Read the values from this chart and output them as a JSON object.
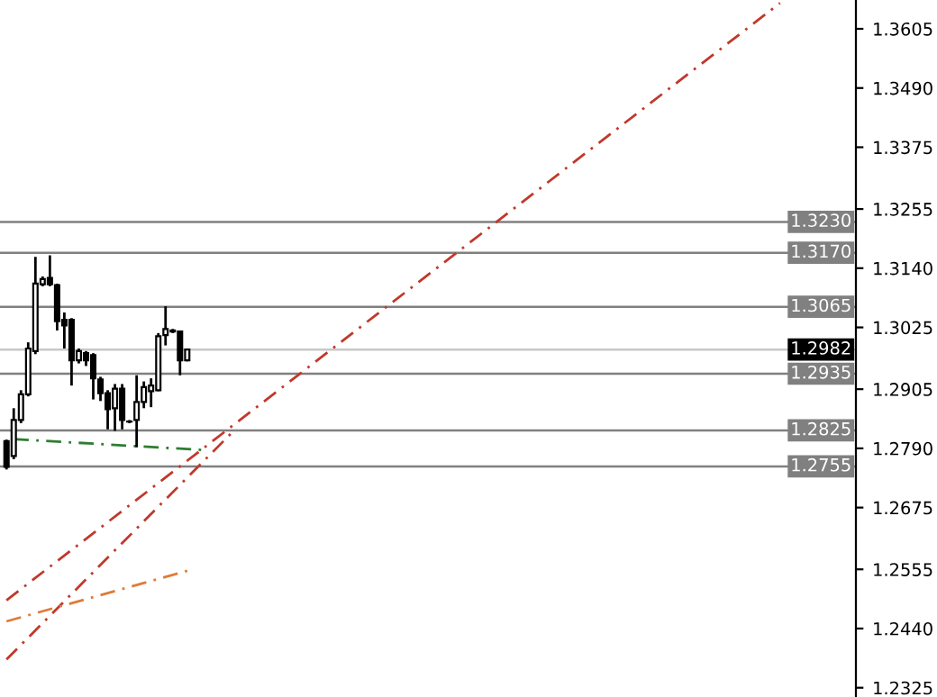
{
  "chart_data": {
    "type": "candlestick",
    "categories": [
      null,
      null,
      null,
      null,
      null,
      null,
      null,
      null,
      null,
      null,
      null,
      null,
      null,
      null,
      null,
      null,
      null,
      null,
      null,
      null,
      null,
      null,
      null,
      null,
      null,
      null,
      null,
      null,
      null,
      null,
      null,
      null,
      null,
      null,
      null,
      null,
      null,
      null,
      null,
      null,
      null,
      null,
      null,
      null,
      null,
      null,
      null,
      null,
      null,
      null,
      null,
      null,
      null,
      null,
      null,
      null,
      null,
      null,
      null,
      null,
      null,
      null,
      null,
      null,
      null,
      null,
      null,
      null,
      null,
      null,
      null,
      null,
      null,
      null,
      null,
      null,
      null,
      null,
      null,
      null,
      null,
      null,
      null,
      null,
      null,
      null,
      null,
      null,
      null,
      null,
      null,
      null,
      null,
      null,
      null,
      null,
      null,
      null,
      null,
      null,
      null,
      null,
      null,
      null,
      null,
      null,
      null,
      null,
      null,
      null,
      null,
      null,
      null,
      null,
      null,
      null,
      null,
      null
    ],
    "ohlc": [
      [
        1.2804,
        1.2807,
        1.2749,
        1.2754
      ],
      [
        1.2775,
        1.2868,
        1.2769,
        1.2845
      ],
      [
        1.2845,
        1.2903,
        1.2839,
        1.2895
      ],
      [
        1.2895,
        1.2996,
        1.2891,
        1.2984
      ],
      [
        1.2979,
        1.3162,
        1.2973,
        1.311
      ],
      [
        1.3109,
        1.3124,
        1.3105,
        1.3119
      ],
      [
        1.3121,
        1.3165,
        1.3105,
        1.3109
      ],
      [
        1.3107,
        1.311,
        1.3019,
        1.3037
      ],
      [
        1.304,
        1.3054,
        1.2984,
        1.3029
      ],
      [
        1.304,
        1.3043,
        1.2912,
        1.2961
      ],
      [
        1.2961,
        1.2984,
        1.2955,
        1.2979
      ],
      [
        1.2975,
        1.2979,
        1.295,
        1.2961
      ],
      [
        1.2971,
        1.2975,
        1.2885,
        1.2926
      ],
      [
        1.2924,
        1.2929,
        1.2882,
        1.2897
      ],
      [
        1.2897,
        1.2903,
        1.2827,
        1.2866
      ],
      [
        1.2868,
        1.2915,
        1.2824,
        1.2906
      ],
      [
        1.2906,
        1.2915,
        1.2827,
        1.2845
      ],
      [
        1.2842,
        1.2845,
        1.2839,
        1.2842
      ],
      [
        1.2845,
        1.2932,
        1.2792,
        1.288
      ],
      [
        1.288,
        1.292,
        1.2868,
        1.2909
      ],
      [
        1.2901,
        1.2926,
        1.287,
        1.2912
      ],
      [
        1.2903,
        1.3014,
        1.2901,
        1.3008
      ],
      [
        1.301,
        1.3066,
        1.299,
        1.3022
      ],
      [
        1.3019,
        1.3022,
        1.3014,
        1.3017
      ],
      [
        1.3017,
        1.3019,
        1.2932,
        1.2961
      ],
      [
        1.2961,
        1.2984,
        1.2959,
        1.2982
      ],
      null,
      null,
      null,
      null,
      null,
      null,
      null,
      null,
      null,
      null,
      null,
      null,
      null,
      null,
      null,
      null,
      null,
      null,
      null,
      null,
      null,
      null,
      null,
      null,
      null,
      null,
      null,
      null,
      null,
      null,
      null,
      null,
      null,
      null,
      null,
      null,
      null,
      null,
      null,
      null,
      null,
      null,
      null,
      null,
      null,
      null,
      null,
      null,
      null,
      null,
      null,
      null,
      null,
      null,
      null,
      null,
      null,
      null,
      null,
      null,
      null,
      null,
      null,
      null,
      null,
      null,
      null,
      null,
      null,
      null,
      null,
      null,
      null,
      null,
      null,
      null,
      null,
      null,
      null,
      null,
      null,
      null,
      null,
      null,
      null,
      null,
      null,
      null,
      null,
      null,
      null,
      null
    ],
    "series": [
      {
        "type": "line",
        "values": [
          1.2495,
          null,
          null,
          null,
          null,
          null,
          null,
          null,
          null,
          null,
          null,
          null,
          null,
          null,
          null,
          null,
          null,
          null,
          null,
          null,
          null,
          null,
          null,
          null,
          null,
          null,
          null,
          null,
          null,
          null,
          null,
          null,
          null,
          null,
          null,
          null,
          null,
          null,
          null,
          null,
          null,
          null,
          null,
          null,
          null,
          null,
          null,
          null,
          null,
          null,
          null,
          null,
          null,
          null,
          null,
          null,
          null,
          null,
          null,
          null,
          null,
          null,
          null,
          null,
          null,
          null,
          null,
          null,
          null,
          null,
          null,
          null,
          null,
          null,
          null,
          null,
          null,
          null,
          null,
          null,
          null,
          null,
          null,
          null,
          null,
          null,
          null,
          null,
          null,
          null,
          null,
          null,
          null,
          null,
          null,
          null,
          null,
          null,
          null,
          null,
          null,
          null,
          null,
          null,
          null,
          null,
          null,
          1.3655,
          null,
          null,
          null,
          null,
          null,
          null,
          null,
          null,
          null,
          null
        ],
        "color": "#c0392b",
        "line_style": "dashed"
      },
      {
        "type": "line",
        "values": [
          1.238,
          null,
          null,
          null,
          null,
          null,
          null,
          null,
          null,
          null,
          null,
          null,
          null,
          null,
          null,
          null,
          null,
          null,
          null,
          null,
          null,
          null,
          null,
          null,
          null,
          null,
          null,
          null,
          null,
          null,
          null,
          1.2818,
          null,
          null,
          null,
          null,
          null,
          null,
          null,
          null,
          null,
          null,
          null,
          null,
          null,
          null,
          null,
          null,
          null,
          null,
          null,
          null,
          null,
          null,
          null,
          null,
          null,
          null,
          null,
          null,
          null,
          null,
          null,
          null,
          null,
          null,
          null,
          null,
          null,
          null,
          null,
          null,
          null,
          null,
          null,
          null,
          null,
          null,
          null,
          null,
          null,
          null,
          null,
          null,
          null,
          null,
          null,
          null,
          null,
          null,
          null,
          null,
          null,
          null,
          null,
          null,
          null,
          null,
          null,
          null,
          null,
          null,
          null,
          null,
          null,
          null,
          null,
          null,
          null,
          null,
          null,
          null,
          null,
          null,
          null,
          null,
          null,
          null
        ],
        "color": "#c0392b",
        "line_style": "dashed"
      },
      {
        "type": "line",
        "values": [
          1.2454,
          null,
          null,
          null,
          null,
          null,
          null,
          null,
          null,
          null,
          null,
          null,
          null,
          null,
          null,
          null,
          null,
          null,
          null,
          null,
          null,
          null,
          null,
          null,
          null,
          1.2552,
          null,
          null,
          null,
          null,
          null,
          null,
          null,
          null,
          null,
          null,
          null,
          null,
          null,
          null,
          null,
          null,
          null,
          null,
          null,
          null,
          null,
          null,
          null,
          null,
          null,
          null,
          null,
          null,
          null,
          null,
          null,
          null,
          null,
          null,
          null,
          null,
          null,
          null,
          null,
          null,
          null,
          null,
          null,
          null,
          null,
          null,
          null,
          null,
          null,
          null,
          null,
          null,
          null,
          null,
          null,
          null,
          null,
          null,
          null,
          null,
          null,
          null,
          null,
          null,
          null,
          null,
          null,
          null,
          null,
          null,
          null,
          null,
          null,
          null,
          null,
          null,
          null,
          null,
          null,
          null,
          null,
          null,
          null,
          null,
          null,
          null,
          null,
          null,
          null,
          null,
          null,
          null
        ],
        "color": "#e07b39",
        "line_style": "dashed"
      },
      {
        "type": "line",
        "values": [
          null,
          1.2808,
          null,
          null,
          null,
          null,
          null,
          null,
          null,
          null,
          null,
          null,
          null,
          null,
          null,
          null,
          null,
          null,
          null,
          null,
          null,
          null,
          null,
          null,
          null,
          null,
          null,
          1.2787,
          null,
          null,
          null,
          null,
          null,
          null,
          null,
          null,
          null,
          null,
          null,
          null,
          null,
          null,
          null,
          null,
          null,
          null,
          null,
          null,
          null,
          null,
          null,
          null,
          null,
          null,
          null,
          null,
          null,
          null,
          null,
          null,
          null,
          null,
          null,
          null,
          null,
          null,
          null,
          null,
          null,
          null,
          null,
          null,
          null,
          null,
          null,
          null,
          null,
          null,
          null,
          null,
          null,
          null,
          null,
          null,
          null,
          null,
          null,
          null,
          null,
          null,
          null,
          null,
          null,
          null,
          null,
          null,
          null,
          null,
          null,
          null,
          null,
          null,
          null,
          null,
          null,
          null,
          null,
          null,
          null,
          null,
          null,
          null,
          null,
          null,
          null,
          null,
          null,
          null
        ],
        "color": "#2e7d32",
        "line_style": "dashed"
      }
    ],
    "ylim": [
      1.2307,
      1.3661
    ],
    "yticks": [
      1.3605,
      {
        "value": 1.349,
        "label": "1.3490"
      },
      1.3375,
      1.3255,
      {
        "value": 1.314,
        "label": "1.3140"
      },
      1.3025,
      1.2905,
      {
        "value": 1.279,
        "label": "1.2790"
      },
      1.2675,
      1.2555,
      {
        "value": 1.244,
        "label": "1.2440"
      },
      1.2325
    ],
    "ref_lines": [
      {
        "axis": "y",
        "value": 1.323,
        "label": "1.3230",
        "color": "#808080"
      },
      {
        "axis": "y",
        "value": 1.317,
        "label": "1.3170",
        "color": "#808080"
      },
      {
        "axis": "y",
        "value": 1.3065,
        "label": "1.3065",
        "color": "#808080"
      },
      {
        "axis": "y",
        "value": 1.2982,
        "label": "1.2982",
        "color": "#c8c8c8"
      },
      {
        "axis": "y",
        "value": 1.2935,
        "label": "1.2935",
        "color": "#808080"
      },
      {
        "axis": "y",
        "value": 1.2825,
        "label": "1.2825",
        "color": "#808080"
      },
      {
        "axis": "y",
        "value": 1.2755,
        "label": "1.2755",
        "color": "#808080"
      }
    ],
    "tick_labels": "y",
    "grid": false,
    "legend": false
  }
}
